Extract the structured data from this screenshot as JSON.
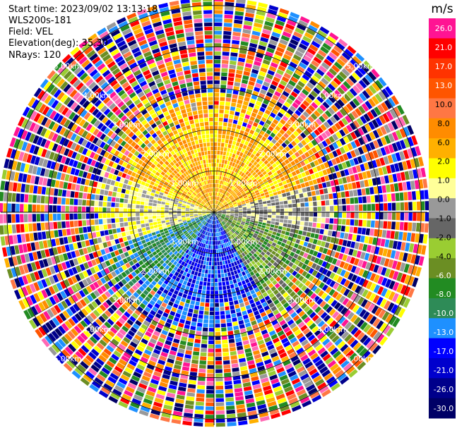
{
  "header": {
    "start_time": "Start time: 2023/09/02 13:13:18",
    "site": "WLS200s-181",
    "field": "Field: VEL",
    "elevation": "Elevation(deg): 35.30",
    "nrays": "NRays: 120"
  },
  "chart_data": {
    "type": "heatmap",
    "projection": "polar-ppi",
    "field": "VEL",
    "units": "m/s",
    "n_rays": 120,
    "range_rings_km": [
      1.0,
      2.0,
      3.0,
      4.0,
      5.0
    ],
    "range_ring_labels": [
      "1.00km",
      "2.00km",
      "3.00km",
      "4.00km",
      "5.00km"
    ],
    "max_range_km": 5.15,
    "colorbar": {
      "title": "m/s",
      "ticks": [
        "26.0",
        "21.0",
        "17.0",
        "13.0",
        "10.0",
        "8.0",
        "6.0",
        "2.0",
        "1.0",
        "0.0",
        "-1.0",
        "-2.0",
        "-4.0",
        "-6.0",
        "-8.0",
        "-10.0",
        "-13.0",
        "-17.0",
        "-21.0",
        "-26.0",
        "-30.0"
      ],
      "colors": [
        "#ff1493",
        "#ff0000",
        "#ff3300",
        "#ff5500",
        "#ff7744",
        "#ff8c00",
        "#ffb000",
        "#ffff00",
        "#ffff99",
        "#999999",
        "#666666",
        "#9acd32",
        "#6b8e23",
        "#228b22",
        "#2e8b57",
        "#1e90ff",
        "#0000ff",
        "#0000cd",
        "#00008b",
        "#000066"
      ]
    },
    "noise_palette": [
      "#ff1493",
      "#ff69b4",
      "#ff0000",
      "#00008b",
      "#0000cd",
      "#0000ff",
      "#1e90ff",
      "#ff8c00",
      "#ffff00",
      "#228b22",
      "#6b8e23",
      "#9acd32",
      "#999999",
      "#ff5500",
      "#000066",
      "#ff7744",
      "#ffb000"
    ]
  }
}
